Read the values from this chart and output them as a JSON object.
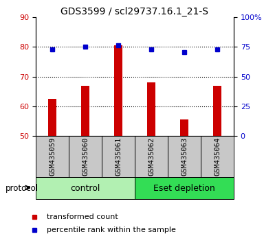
{
  "title": "GDS3599 / scl29737.16.1_21-S",
  "samples": [
    "GSM435059",
    "GSM435060",
    "GSM435061",
    "GSM435062",
    "GSM435063",
    "GSM435064"
  ],
  "transformed_count": [
    62.5,
    67.0,
    80.5,
    68.0,
    55.5,
    67.0
  ],
  "percentile_rank": [
    72.5,
    75.0,
    76.0,
    73.0,
    70.5,
    73.0
  ],
  "bar_color": "#cc0000",
  "square_color": "#0000cc",
  "left_ylim": [
    50,
    90
  ],
  "left_yticks": [
    50,
    60,
    70,
    80,
    90
  ],
  "right_ylim": [
    0,
    100
  ],
  "right_yticks": [
    0,
    25,
    50,
    75,
    100
  ],
  "right_yticklabels": [
    "0",
    "25",
    "50",
    "75",
    "100%"
  ],
  "groups": [
    {
      "label": "control",
      "indices": [
        0,
        1,
        2
      ],
      "color": "#b2f0b2"
    },
    {
      "label": "Eset depletion",
      "indices": [
        3,
        4,
        5
      ],
      "color": "#33dd55"
    }
  ],
  "protocol_label": "protocol",
  "legend_items": [
    {
      "label": "transformed count",
      "color": "#cc0000"
    },
    {
      "label": "percentile rank within the sample",
      "color": "#0000cc"
    }
  ],
  "title_fontsize": 10,
  "tick_fontsize": 8,
  "bar_width": 0.25,
  "sample_label_fontsize": 7.5,
  "group_label_fontsize": 9,
  "legend_fontsize": 8
}
